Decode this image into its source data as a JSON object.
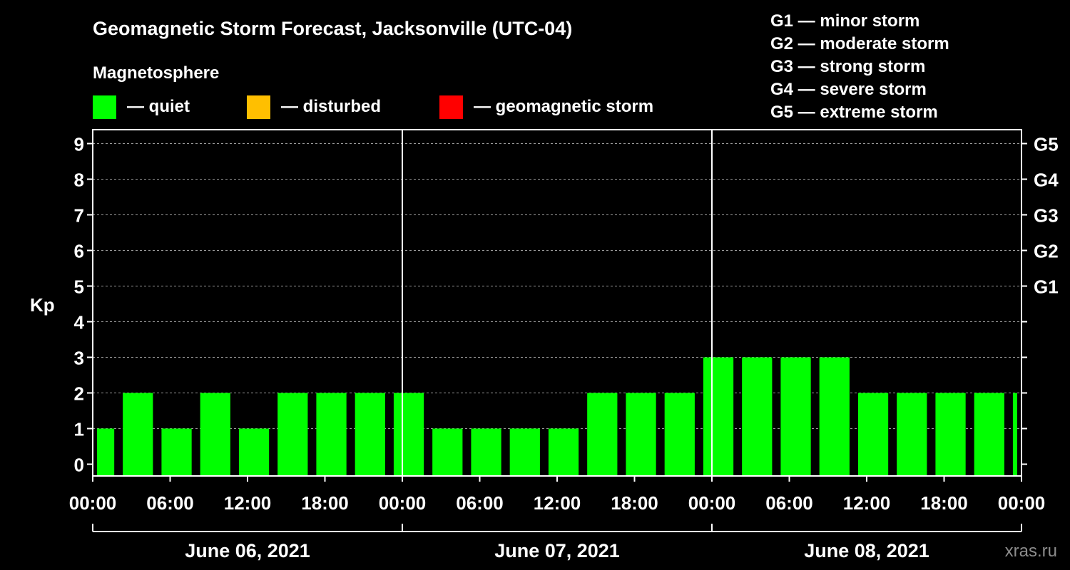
{
  "title": "Geomagnetic Storm Forecast, Jacksonville (UTC-04)",
  "legend": {
    "heading": "Magnetosphere",
    "items": [
      {
        "label": "— quiet",
        "color": "#00ff00"
      },
      {
        "label": "— disturbed",
        "color": "#ffbf00"
      },
      {
        "label": "— geomagnetic storm",
        "color": "#ff0000"
      }
    ]
  },
  "scale_legend": [
    "G1 — minor storm",
    "G2 — moderate storm",
    "G3 — strong storm",
    "G4 — severe storm",
    "G5 — extreme storm"
  ],
  "watermark": "xras.ru",
  "colors": {
    "quiet": "#00ff00",
    "disturbed": "#ffbf00",
    "storm": "#ff0000",
    "background": "#000000",
    "foreground": "#ffffff"
  },
  "chart_data": {
    "type": "bar",
    "ylabel": "Kp",
    "ylim": [
      0,
      9
    ],
    "yticks": [
      "0",
      "1",
      "2",
      "3",
      "4",
      "5",
      "6",
      "7",
      "8",
      "9"
    ],
    "right_ticks": [
      {
        "kp": 5,
        "label": "G1"
      },
      {
        "kp": 6,
        "label": "G2"
      },
      {
        "kp": 7,
        "label": "G3"
      },
      {
        "kp": 8,
        "label": "G4"
      },
      {
        "kp": 9,
        "label": "G5"
      }
    ],
    "xlim_hours": [
      0,
      72
    ],
    "x_tick_hours": [
      0,
      6,
      12,
      18,
      24,
      30,
      36,
      42,
      48,
      54,
      60,
      66,
      72
    ],
    "x_tick_labels": [
      "00:00",
      "06:00",
      "12:00",
      "18:00",
      "00:00",
      "06:00",
      "12:00",
      "18:00",
      "00:00",
      "06:00",
      "12:00",
      "18:00",
      "00:00"
    ],
    "days": [
      {
        "label": "June 06, 2021",
        "start_hour": 0,
        "end_hour": 24
      },
      {
        "label": "June 07, 2021",
        "start_hour": 24,
        "end_hour": 48
      },
      {
        "label": "June 08, 2021",
        "start_hour": 48,
        "end_hour": 72
      }
    ],
    "grid": true,
    "bars": [
      {
        "start_hour": 0,
        "end_hour": 2,
        "kp": 1
      },
      {
        "start_hour": 2,
        "end_hour": 5,
        "kp": 2
      },
      {
        "start_hour": 5,
        "end_hour": 8,
        "kp": 1
      },
      {
        "start_hour": 8,
        "end_hour": 11,
        "kp": 2
      },
      {
        "start_hour": 11,
        "end_hour": 14,
        "kp": 1
      },
      {
        "start_hour": 14,
        "end_hour": 17,
        "kp": 2
      },
      {
        "start_hour": 17,
        "end_hour": 20,
        "kp": 2
      },
      {
        "start_hour": 20,
        "end_hour": 23,
        "kp": 2
      },
      {
        "start_hour": 23,
        "end_hour": 26,
        "kp": 2
      },
      {
        "start_hour": 26,
        "end_hour": 29,
        "kp": 1
      },
      {
        "start_hour": 29,
        "end_hour": 32,
        "kp": 1
      },
      {
        "start_hour": 32,
        "end_hour": 35,
        "kp": 1
      },
      {
        "start_hour": 35,
        "end_hour": 38,
        "kp": 1
      },
      {
        "start_hour": 38,
        "end_hour": 41,
        "kp": 2
      },
      {
        "start_hour": 41,
        "end_hour": 44,
        "kp": 2
      },
      {
        "start_hour": 44,
        "end_hour": 47,
        "kp": 2
      },
      {
        "start_hour": 47,
        "end_hour": 50,
        "kp": 3
      },
      {
        "start_hour": 50,
        "end_hour": 53,
        "kp": 3
      },
      {
        "start_hour": 53,
        "end_hour": 56,
        "kp": 3
      },
      {
        "start_hour": 56,
        "end_hour": 59,
        "kp": 3
      },
      {
        "start_hour": 59,
        "end_hour": 62,
        "kp": 2
      },
      {
        "start_hour": 62,
        "end_hour": 65,
        "kp": 2
      },
      {
        "start_hour": 65,
        "end_hour": 68,
        "kp": 2
      },
      {
        "start_hour": 68,
        "end_hour": 71,
        "kp": 2
      },
      {
        "start_hour": 71,
        "end_hour": 72,
        "kp": 2
      }
    ]
  }
}
